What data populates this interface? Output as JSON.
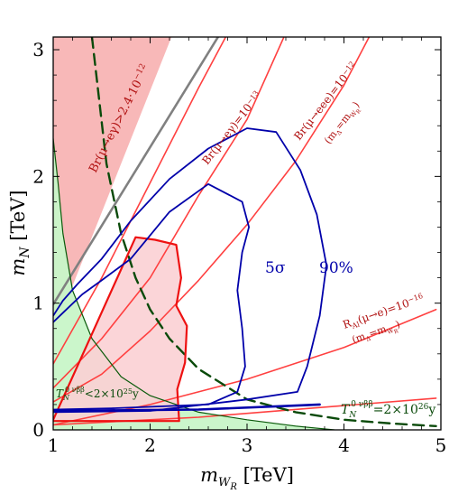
{
  "chart_data": {
    "type": "line",
    "xlabel": "m_{W_R} [TeV]",
    "ylabel": "m_N [TeV]",
    "xlim": [
      1,
      5
    ],
    "ylim": [
      0,
      3.1
    ],
    "x_ticks": [
      1,
      2,
      3,
      4,
      5
    ],
    "y_ticks": [
      0,
      1,
      2,
      3
    ],
    "grid": false,
    "regions": [
      {
        "name": "Br(μ→eγ) excluded",
        "color": "#f5a0a0",
        "opacity": 0.75,
        "points": [
          [
            1.0,
            3.1
          ],
          [
            2.22,
            3.1
          ],
          [
            1.05,
            0.85
          ],
          [
            1.0,
            0.8
          ]
        ]
      },
      {
        "name": "T_N 0νββ < 2×10^25 y",
        "color": "#c8f5c8",
        "opacity": 0.95,
        "points": [
          [
            1.0,
            2.3
          ],
          [
            1.1,
            1.55
          ],
          [
            1.2,
            1.1
          ],
          [
            1.4,
            0.72
          ],
          [
            1.7,
            0.42
          ],
          [
            2.0,
            0.27
          ],
          [
            2.5,
            0.14
          ],
          [
            3.0,
            0.08
          ],
          [
            3.9,
            0.0
          ],
          [
            1.0,
            0.0
          ]
        ]
      },
      {
        "name": "red shaded region",
        "color": "#fbd0d4",
        "opacity": 0.9,
        "points": [
          [
            1.0,
            0.08
          ],
          [
            1.85,
            1.52
          ],
          [
            2.05,
            1.5
          ],
          [
            2.27,
            1.46
          ],
          [
            2.32,
            1.2
          ],
          [
            2.27,
            0.98
          ],
          [
            2.38,
            0.82
          ],
          [
            2.36,
            0.53
          ],
          [
            2.28,
            0.32
          ],
          [
            2.3,
            0.07
          ],
          [
            1.0,
            0.07
          ]
        ]
      }
    ],
    "series": [
      {
        "color": "#808080",
        "width": 2.6,
        "dash": false,
        "points": [
          [
            1.0,
            0.99
          ],
          [
            2.7,
            3.1
          ]
        ]
      },
      {
        "color": "#ff4040",
        "width": 1.6,
        "dash": false,
        "points": [
          [
            1.0,
            0.52
          ],
          [
            1.5,
            1.2
          ],
          [
            2.0,
            1.95
          ],
          [
            2.5,
            2.7
          ],
          [
            2.78,
            3.1
          ]
        ]
      },
      {
        "color": "#ff4040",
        "width": 1.6,
        "dash": false,
        "points": [
          [
            1.0,
            0.33
          ],
          [
            1.5,
            0.72
          ],
          [
            2.0,
            1.2
          ],
          [
            2.5,
            1.85
          ],
          [
            3.0,
            2.45
          ],
          [
            3.38,
            3.1
          ]
        ]
      },
      {
        "color": "#ff4040",
        "width": 1.6,
        "dash": false,
        "points": [
          [
            1.0,
            0.22
          ],
          [
            1.5,
            0.44
          ],
          [
            2.0,
            0.78
          ],
          [
            2.5,
            1.18
          ],
          [
            3.0,
            1.62
          ],
          [
            3.5,
            2.12
          ],
          [
            4.0,
            2.72
          ],
          [
            4.26,
            3.1
          ]
        ]
      },
      {
        "color": "#ff4040",
        "width": 1.6,
        "dash": false,
        "points": [
          [
            1.0,
            0.04
          ],
          [
            2.0,
            0.2
          ],
          [
            3.0,
            0.4
          ],
          [
            4.0,
            0.65
          ],
          [
            4.95,
            0.95
          ]
        ]
      },
      {
        "color": "#ff4040",
        "width": 1.6,
        "dash": false,
        "points": [
          [
            1.0,
            0.04
          ],
          [
            2.5,
            0.1
          ],
          [
            4.95,
            0.25
          ]
        ]
      },
      {
        "color": "#0a5a0a",
        "width": 1.2,
        "dash": false,
        "points": [
          [
            1.0,
            2.3
          ],
          [
            1.05,
            1.95
          ],
          [
            1.1,
            1.55
          ],
          [
            1.2,
            1.1
          ],
          [
            1.4,
            0.72
          ],
          [
            1.7,
            0.42
          ],
          [
            2.0,
            0.27
          ],
          [
            2.5,
            0.14
          ],
          [
            3.0,
            0.08
          ],
          [
            3.5,
            0.03
          ],
          [
            3.9,
            0.0
          ]
        ]
      },
      {
        "color": "#0a4a0a",
        "width": 2.4,
        "dash": true,
        "points": [
          [
            1.4,
            3.1
          ],
          [
            1.55,
            2.1
          ],
          [
            1.7,
            1.55
          ],
          [
            1.85,
            1.2
          ],
          [
            2.0,
            0.95
          ],
          [
            2.2,
            0.72
          ],
          [
            2.5,
            0.48
          ],
          [
            3.0,
            0.24
          ],
          [
            3.5,
            0.14
          ],
          [
            4.0,
            0.08
          ],
          [
            4.5,
            0.05
          ],
          [
            4.95,
            0.03
          ]
        ]
      },
      {
        "color": "#ee1111",
        "width": 2.2,
        "dash": false,
        "points": [
          [
            1.0,
            0.07
          ],
          [
            2.3,
            0.07
          ],
          [
            2.28,
            0.32
          ],
          [
            2.36,
            0.53
          ],
          [
            2.38,
            0.82
          ],
          [
            2.27,
            0.98
          ],
          [
            2.32,
            1.2
          ],
          [
            2.27,
            1.46
          ],
          [
            2.05,
            1.5
          ],
          [
            1.85,
            1.52
          ],
          [
            1.0,
            0.08
          ]
        ]
      },
      {
        "color": "#0000aa",
        "width": 1.8,
        "dash": false,
        "points": [
          [
            1.0,
            0.16
          ],
          [
            1.6,
            0.17
          ],
          [
            2.6,
            0.2
          ],
          [
            2.9,
            0.3
          ],
          [
            2.98,
            0.5
          ],
          [
            2.95,
            0.8
          ],
          [
            2.9,
            1.1
          ],
          [
            2.95,
            1.4
          ],
          [
            3.02,
            1.6
          ],
          [
            2.95,
            1.8
          ],
          [
            2.6,
            1.94
          ],
          [
            2.2,
            1.72
          ],
          [
            1.8,
            1.35
          ],
          [
            1.5,
            1.18
          ],
          [
            1.3,
            1.07
          ],
          [
            1.15,
            0.96
          ],
          [
            1.0,
            0.85
          ]
        ]
      },
      {
        "color": "#0000aa",
        "width": 1.8,
        "dash": false,
        "points": [
          [
            1.0,
            0.14
          ],
          [
            2.0,
            0.15
          ],
          [
            3.0,
            0.24
          ],
          [
            3.52,
            0.3
          ],
          [
            3.62,
            0.5
          ],
          [
            3.75,
            0.9
          ],
          [
            3.82,
            1.3
          ],
          [
            3.72,
            1.7
          ],
          [
            3.55,
            2.05
          ],
          [
            3.3,
            2.35
          ],
          [
            3.0,
            2.38
          ],
          [
            2.6,
            2.22
          ],
          [
            2.2,
            1.98
          ],
          [
            1.8,
            1.65
          ],
          [
            1.5,
            1.35
          ],
          [
            1.25,
            1.15
          ],
          [
            1.1,
            1.02
          ],
          [
            1.0,
            0.9
          ]
        ]
      },
      {
        "color": "#0000aa",
        "width": 2.6,
        "dash": false,
        "points": [
          [
            1.0,
            0.15
          ],
          [
            2.5,
            0.16
          ],
          [
            3.45,
            0.19
          ],
          [
            3.75,
            0.2
          ]
        ]
      }
    ],
    "annotations": {
      "br_mu_egamma": "Br(μ→eγ)>2.4·10",
      "br_mu_egamma_exp": "−12",
      "br_mu_3e_13": "Br(μ→eγ)=10",
      "br_mu_3e_13_exp": "−13",
      "br_mu_eee": "Br(μ→eee)=10",
      "br_mu_eee_exp": "−12",
      "mdelta_1": "(m",
      "mdelta_1b": "Δ",
      "mdelta_1c": "=m",
      "mdelta_1d": "W",
      "mdelta_1e": "R",
      "mdelta_1f": ")",
      "ral_label": "R",
      "ral_sub": "Al",
      "ral_text": "(μ→e)=10",
      "ral_exp": "−16",
      "five_sigma": "5σ",
      "ninety": "90%",
      "t_25_main": "T",
      "t_25_sub": "N",
      "t_25_sup": "0 νββ",
      "t_25_rest": "<2×10",
      "t_25_exp": "25",
      "t_25_unit": "y",
      "t_26_rest": "=2×10",
      "t_26_exp": "26",
      "t_26_unit": "y"
    }
  }
}
